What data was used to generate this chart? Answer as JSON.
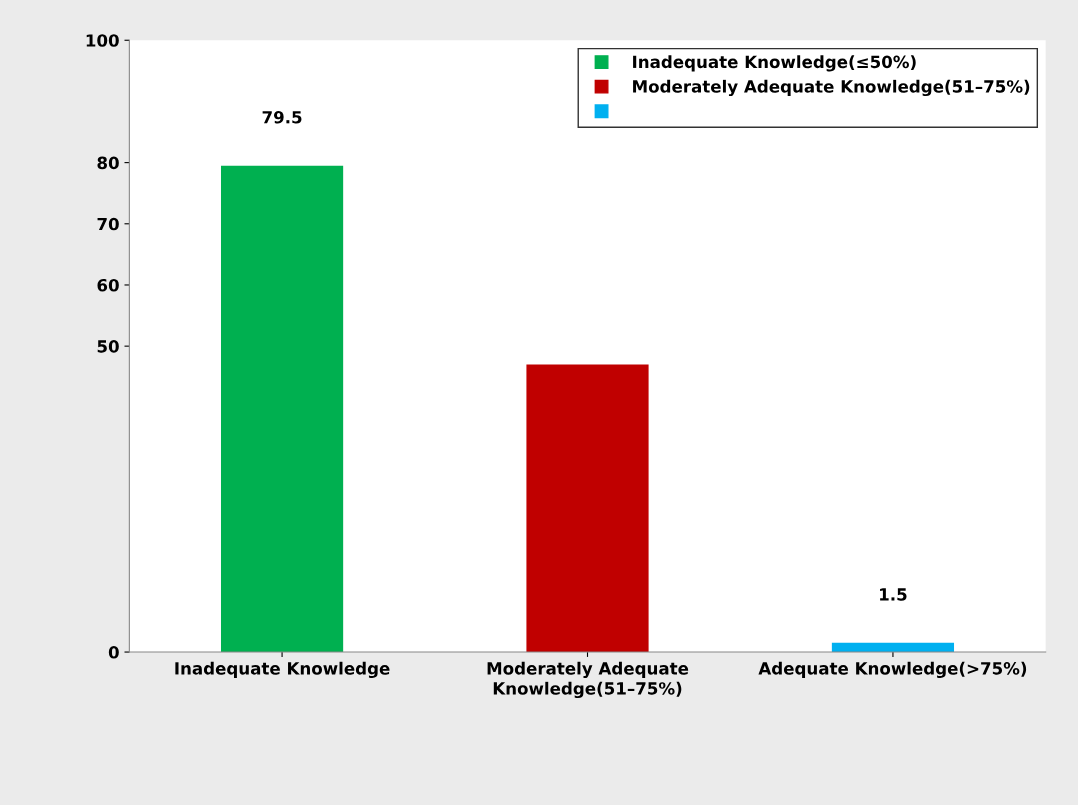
{
  "chart_data": {
    "type": "bar",
    "categories": [
      "Inadequate Knowledge",
      "Moderately Adequate\nKnowledge(51–75%)",
      "Adequate Knowledge(>75%)"
    ],
    "series": [
      {
        "name": "Inadequate Knowledge(≤50%)",
        "color": "#00b050",
        "values": [
          79.5,
          null,
          null
        ],
        "value_labels": [
          "79.5",
          null,
          null
        ]
      },
      {
        "name": "Moderately Adequate Knowledge(51–75%)",
        "color": "#c00000",
        "values": [
          null,
          47,
          null
        ],
        "value_labels": [
          null,
          null,
          null
        ]
      },
      {
        "color": "#00b0f0",
        "values": [
          null,
          null,
          1.5
        ],
        "value_labels": [
          null,
          null,
          "1.5"
        ]
      }
    ],
    "ylim": [
      0,
      100
    ],
    "yticks": [
      0,
      50,
      60,
      70,
      80,
      100
    ],
    "grid": false,
    "legend": "top right"
  }
}
